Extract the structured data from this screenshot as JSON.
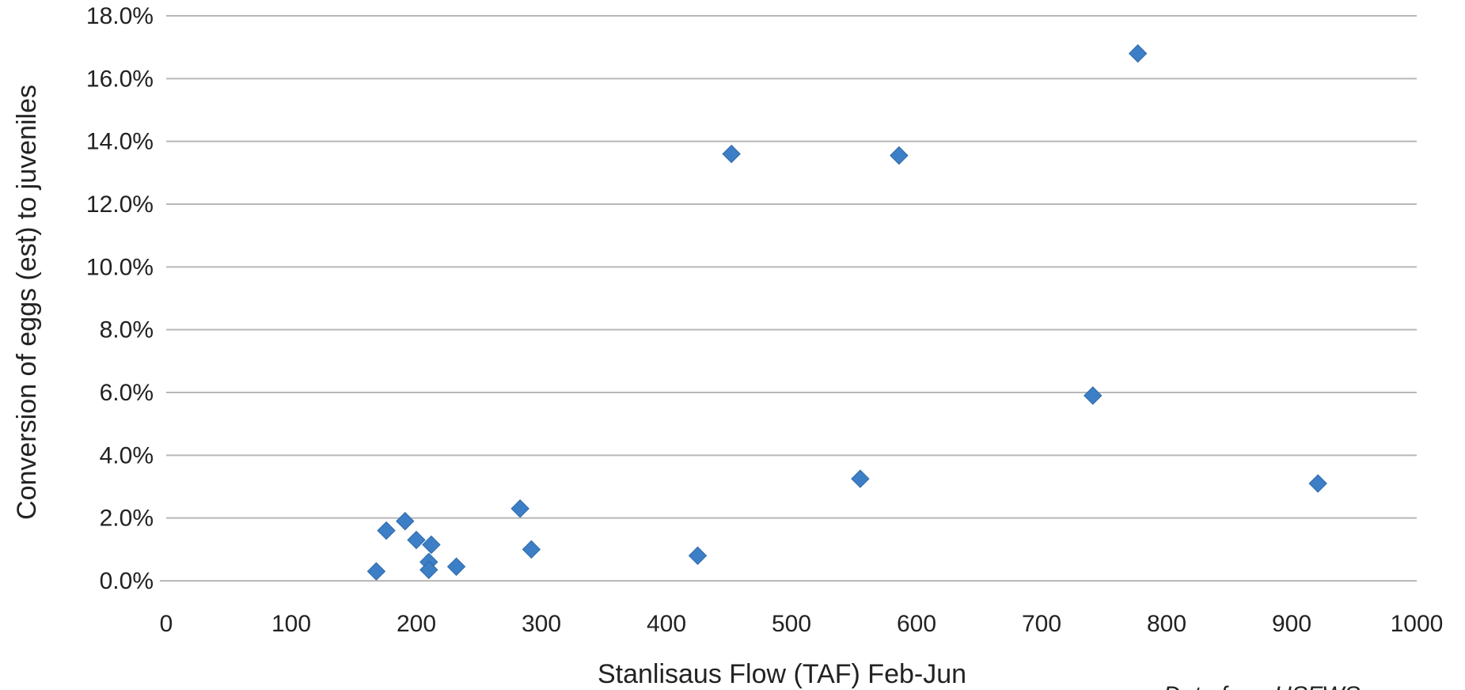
{
  "chart_data": {
    "type": "scatter",
    "title": "",
    "xlabel": "Stanlisaus Flow (TAF) Feb-Jun",
    "ylabel": "Conversion of eggs (est) to juveniles",
    "xlim": [
      0,
      1000
    ],
    "ylim": [
      0,
      18
    ],
    "x_ticks": [
      0,
      100,
      200,
      300,
      400,
      500,
      600,
      700,
      800,
      900,
      1000
    ],
    "y_ticks": [
      0,
      2,
      4,
      6,
      8,
      10,
      12,
      14,
      16,
      18
    ],
    "y_tick_labels": [
      "0.0%",
      "2.0%",
      "4.0%",
      "6.0%",
      "8.0%",
      "10.0%",
      "12.0%",
      "14.0%",
      "16.0%",
      "18.0%"
    ],
    "grid": "horizontal",
    "legend": "none",
    "marker": "diamond",
    "marker_color": "#3d7fc6",
    "series": [
      {
        "points": [
          {
            "x": 168,
            "y": 0.3
          },
          {
            "x": 176,
            "y": 1.6
          },
          {
            "x": 191,
            "y": 1.9
          },
          {
            "x": 200,
            "y": 1.3
          },
          {
            "x": 210,
            "y": 0.6
          },
          {
            "x": 210,
            "y": 0.35
          },
          {
            "x": 212,
            "y": 1.15
          },
          {
            "x": 232,
            "y": 0.45
          },
          {
            "x": 283,
            "y": 2.3
          },
          {
            "x": 292,
            "y": 1.0
          },
          {
            "x": 425,
            "y": 0.8
          },
          {
            "x": 452,
            "y": 13.6
          },
          {
            "x": 555,
            "y": 3.25
          },
          {
            "x": 586,
            "y": 13.55
          },
          {
            "x": 741,
            "y": 5.9
          },
          {
            "x": 777,
            "y": 16.8
          },
          {
            "x": 921,
            "y": 3.1
          }
        ]
      }
    ]
  },
  "note": {
    "text": "Data from USFWS"
  }
}
